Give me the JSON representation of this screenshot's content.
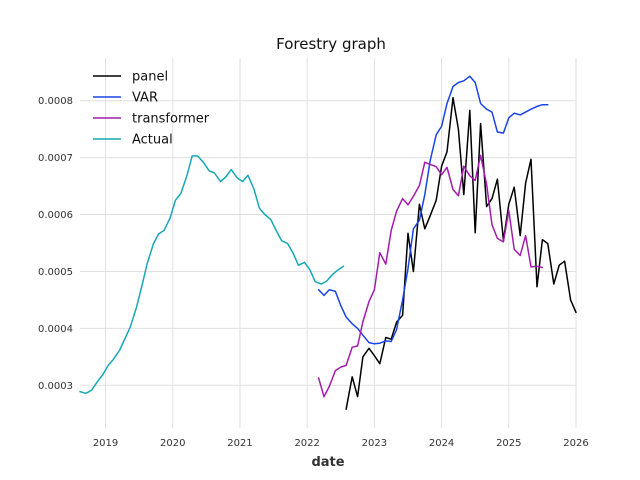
{
  "chart_data": {
    "type": "line",
    "title": "Forestry graph",
    "xlabel": "date",
    "ylabel": "",
    "xlim": [
      2018.62,
      2026.0
    ],
    "ylim": [
      0.000225,
      0.000875
    ],
    "x_ticks": [
      2019,
      2020,
      2021,
      2022,
      2023,
      2024,
      2025,
      2026
    ],
    "x_tick_labels": [
      "2019",
      "2020",
      "2021",
      "2022",
      "2023",
      "2024",
      "2025",
      "2026"
    ],
    "y_ticks": [
      0.0003,
      0.0004,
      0.0005,
      0.0006,
      0.0007,
      0.0008
    ],
    "y_tick_labels": [
      "0.0003",
      "0.0004",
      "0.0005",
      "0.0006",
      "0.0007",
      "0.0008"
    ],
    "grid": true,
    "legend_position": "top-left",
    "series": [
      {
        "name": "panel",
        "color": "#000000",
        "x": [
          2022.58,
          2022.67,
          2022.75,
          2022.83,
          2022.92,
          2023.0,
          2023.08,
          2023.17,
          2023.25,
          2023.33,
          2023.42,
          2023.5,
          2023.58,
          2023.67,
          2023.75,
          2023.83,
          2023.92,
          2024.0,
          2024.08,
          2024.17,
          2024.25,
          2024.33,
          2024.42,
          2024.5,
          2024.58,
          2024.67,
          2024.75,
          2024.83,
          2024.92,
          2025.0,
          2025.08,
          2025.17,
          2025.25,
          2025.33,
          2025.42,
          2025.5,
          2025.58,
          2025.67,
          2025.75,
          2025.83,
          2025.92,
          2026.0
        ],
        "y": [
          0.000258,
          0.000315,
          0.00028,
          0.00035,
          0.000365,
          0.000352,
          0.000338,
          0.000384,
          0.000381,
          0.000411,
          0.000423,
          0.000567,
          0.0005,
          0.000618,
          0.000575,
          0.000598,
          0.000625,
          0.000685,
          0.00071,
          0.000805,
          0.00075,
          0.000635,
          0.000783,
          0.000568,
          0.00076,
          0.000614,
          0.000628,
          0.000662,
          0.000555,
          0.000618,
          0.000648,
          0.000563,
          0.000655,
          0.000697,
          0.000473,
          0.000556,
          0.000549,
          0.000478,
          0.000511,
          0.000518,
          0.00045,
          0.000428
        ]
      },
      {
        "name": "VAR",
        "color": "#1a44e6",
        "x": [
          2022.17,
          2022.25,
          2022.33,
          2022.42,
          2022.5,
          2022.58,
          2022.67,
          2022.75,
          2022.83,
          2022.92,
          2023.0,
          2023.08,
          2023.17,
          2023.25,
          2023.33,
          2023.42,
          2023.5,
          2023.58,
          2023.67,
          2023.75,
          2023.83,
          2023.92,
          2024.0,
          2024.08,
          2024.17,
          2024.25,
          2024.33,
          2024.42,
          2024.5,
          2024.58,
          2024.67,
          2024.75,
          2024.83,
          2024.92,
          2025.0,
          2025.08,
          2025.17,
          2025.25,
          2025.33,
          2025.42,
          2025.5,
          2025.58
        ],
        "y": [
          0.000468,
          0.000458,
          0.000468,
          0.000465,
          0.00044,
          0.00042,
          0.000408,
          0.0004,
          0.000388,
          0.000375,
          0.000373,
          0.000374,
          0.000378,
          0.000377,
          0.000398,
          0.00045,
          0.000505,
          0.000575,
          0.00059,
          0.000635,
          0.000695,
          0.00074,
          0.000755,
          0.000795,
          0.000825,
          0.000832,
          0.000835,
          0.000843,
          0.000832,
          0.000795,
          0.000785,
          0.00078,
          0.000745,
          0.000743,
          0.00077,
          0.000778,
          0.000775,
          0.00078,
          0.000785,
          0.00079,
          0.000793,
          0.000793
        ]
      },
      {
        "name": "transformer",
        "color": "#a21caf",
        "x": [
          2022.17,
          2022.25,
          2022.33,
          2022.42,
          2022.5,
          2022.58,
          2022.67,
          2022.75,
          2022.83,
          2022.92,
          2023.0,
          2023.08,
          2023.17,
          2023.25,
          2023.33,
          2023.42,
          2023.5,
          2023.58,
          2023.67,
          2023.75,
          2023.83,
          2023.92,
          2024.0,
          2024.08,
          2024.17,
          2024.25,
          2024.33,
          2024.42,
          2024.5,
          2024.58,
          2024.67,
          2024.75,
          2024.83,
          2024.92,
          2025.0,
          2025.08,
          2025.17,
          2025.25,
          2025.33,
          2025.42,
          2025.5
        ],
        "y": [
          0.000313,
          0.00028,
          0.000298,
          0.000326,
          0.000332,
          0.000335,
          0.000367,
          0.000369,
          0.000412,
          0.000447,
          0.000468,
          0.000533,
          0.000513,
          0.000572,
          0.000606,
          0.000628,
          0.000617,
          0.000632,
          0.000651,
          0.000692,
          0.000688,
          0.000684,
          0.00067,
          0.000683,
          0.000644,
          0.000633,
          0.000685,
          0.000668,
          0.00066,
          0.000704,
          0.000653,
          0.000582,
          0.000558,
          0.000552,
          0.000607,
          0.000539,
          0.000528,
          0.000563,
          0.000508,
          0.000509,
          0.000507
        ]
      },
      {
        "name": "Actual",
        "color": "#17a8b5",
        "x": [
          2018.62,
          2018.71,
          2018.79,
          2018.87,
          2018.96,
          2019.04,
          2019.12,
          2019.21,
          2019.29,
          2019.37,
          2019.46,
          2019.54,
          2019.62,
          2019.71,
          2019.79,
          2019.87,
          2019.96,
          2020.04,
          2020.12,
          2020.21,
          2020.29,
          2020.37,
          2020.46,
          2020.54,
          2020.62,
          2020.71,
          2020.79,
          2020.87,
          2020.96,
          2021.04,
          2021.12,
          2021.21,
          2021.29,
          2021.37,
          2021.46,
          2021.54,
          2021.62,
          2021.71,
          2021.79,
          2021.87,
          2021.96,
          2022.04,
          2022.12,
          2022.21,
          2022.29,
          2022.37,
          2022.46,
          2022.54
        ],
        "y": [
          0.000289,
          0.000286,
          0.000291,
          0.000305,
          0.000319,
          0.000335,
          0.000346,
          0.000362,
          0.000382,
          0.000403,
          0.000437,
          0.000474,
          0.000514,
          0.000548,
          0.000566,
          0.000572,
          0.000594,
          0.000625,
          0.000637,
          0.000668,
          0.000703,
          0.000703,
          0.000691,
          0.000677,
          0.000673,
          0.000658,
          0.000666,
          0.000679,
          0.000664,
          0.000658,
          0.000669,
          0.000644,
          0.000611,
          0.0006,
          0.000591,
          0.000572,
          0.000554,
          0.000549,
          0.000532,
          0.000511,
          0.000516,
          0.000503,
          0.000482,
          0.000478,
          0.000483,
          0.000494,
          0.000503,
          0.000509
        ]
      }
    ]
  }
}
